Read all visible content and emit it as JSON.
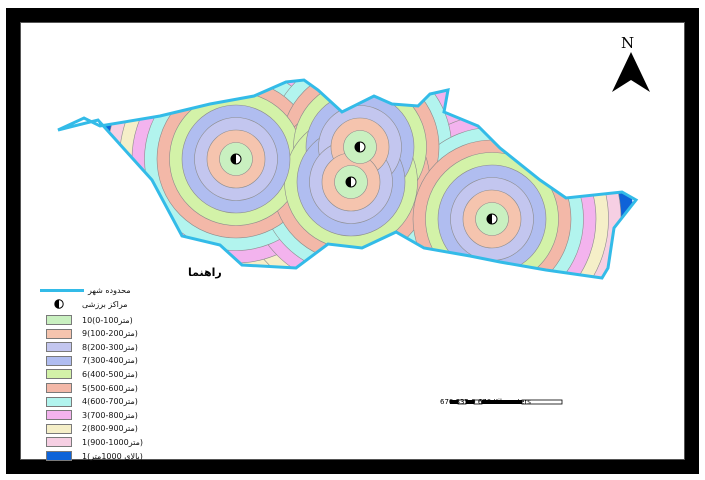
{
  "north_arrow": {
    "label": "N"
  },
  "legend": {
    "title": "راهنما",
    "city_boundary_label": "محدوده شهر",
    "centers_label": "مراکز برزشی",
    "classes": [
      {
        "label": "10(0-100متر)",
        "color": "#c9f0c0"
      },
      {
        "label": "9(100-200متر)",
        "color": "#f5c4ae"
      },
      {
        "label": "8(200-300متر)",
        "color": "#c3c6ef"
      },
      {
        "label": "7(300-400متر)",
        "color": "#b0bdf0"
      },
      {
        "label": "6(400-500متر)",
        "color": "#d3f2a8"
      },
      {
        "label": "5(500-600متر)",
        "color": "#f3b8a8"
      },
      {
        "label": "4(600-700متر)",
        "color": "#b2f4ee"
      },
      {
        "label": "3(700-800متر)",
        "color": "#f3b3ee"
      },
      {
        "label": "2(800-900متر)",
        "color": "#f5efc8"
      },
      {
        "label": "1(900-1000متر)",
        "color": "#f6cfe3"
      },
      {
        "label": "1(بالای 1000متر)",
        "color": "#0e63d8"
      }
    ]
  },
  "scale_bar": {
    "labels": "670 335  0          670 Kilometers"
  },
  "colors": {
    "boundary": "#33bbe8",
    "outer_zone": "#0e63d8",
    "frame": "#000000"
  }
}
